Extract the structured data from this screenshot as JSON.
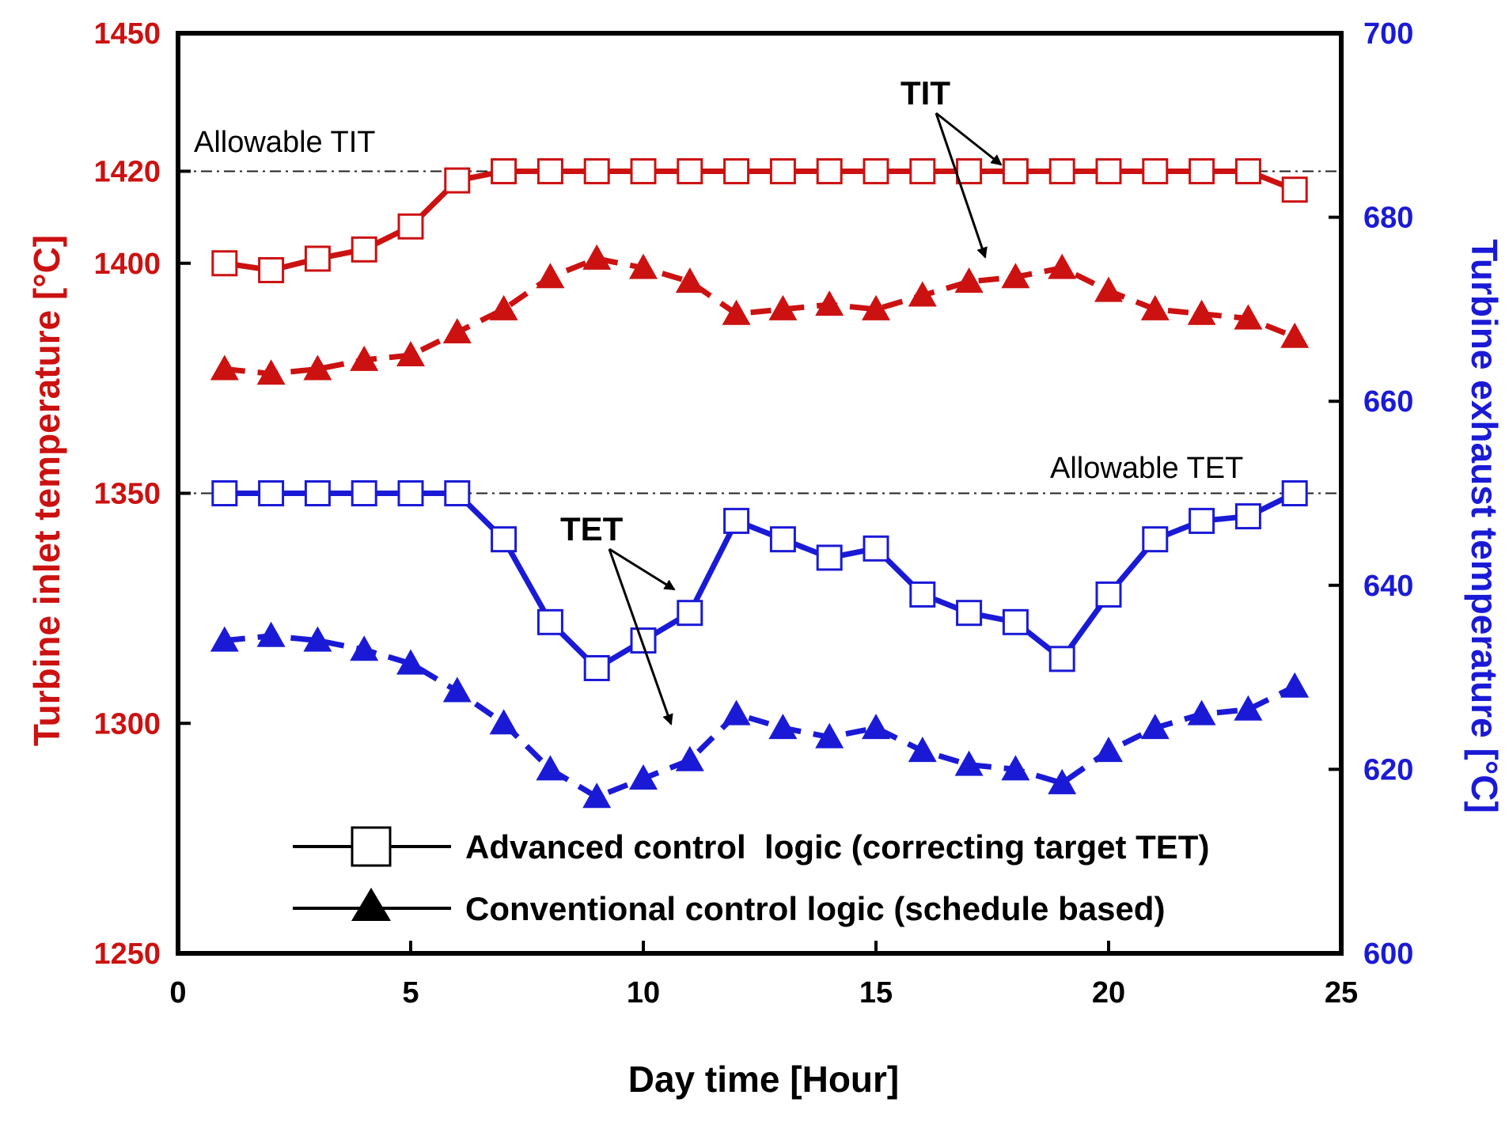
{
  "chart_data": {
    "type": "line",
    "xlabel": "Day time [Hour]",
    "ylabel_left": "Turbine inlet temperature [°C]",
    "ylabel_right": "Turbine exhaust temperature [°C]",
    "xlim": [
      0,
      25
    ],
    "ylim_left": [
      1250,
      1450
    ],
    "ylim_right": [
      600,
      700
    ],
    "x_ticks": [
      "0",
      "5",
      "10",
      "15",
      "20",
      "25"
    ],
    "y_ticks_left": [
      "1250",
      "1300",
      "1350",
      "1400",
      "1420",
      "1450"
    ],
    "y_ticks_right": [
      "600",
      "620",
      "640",
      "660",
      "680",
      "700"
    ],
    "colors": {
      "left_axis": "#cc1111",
      "right_axis": "#1a1ad6",
      "frame": "#000000"
    },
    "reference_lines": [
      {
        "label": "Allowable TIT",
        "axis": "left",
        "value": 1420
      },
      {
        "label": "Allowable TET",
        "axis": "right",
        "value": 650
      }
    ],
    "annotations": [
      {
        "text": "TIT"
      },
      {
        "text": "TET"
      }
    ],
    "legend": [
      {
        "label": "Advanced control  logic (correcting target TET)",
        "marker": "open-square"
      },
      {
        "label": "Conventional control logic (schedule based)",
        "marker": "filled-triangle"
      }
    ],
    "series": [
      {
        "name": "TIT - Advanced control logic",
        "axis": "left",
        "color": "#cc1111",
        "marker": "open-square",
        "line": "solid",
        "x": [
          1,
          2,
          3,
          4,
          5,
          6,
          7,
          8,
          9,
          10,
          11,
          12,
          13,
          14,
          15,
          16,
          17,
          18,
          19,
          20,
          21,
          22,
          23,
          24
        ],
        "y": [
          1400,
          1398.5,
          1401,
          1403,
          1408,
          1418,
          1420,
          1420,
          1420,
          1420,
          1420,
          1420,
          1420,
          1420,
          1420,
          1420,
          1420,
          1420,
          1420,
          1420,
          1420,
          1420,
          1420,
          1416
        ]
      },
      {
        "name": "TIT - Conventional control logic",
        "axis": "left",
        "color": "#cc1111",
        "marker": "filled-triangle",
        "line": "dashed",
        "x": [
          1,
          2,
          3,
          4,
          5,
          6,
          7,
          8,
          9,
          10,
          11,
          12,
          13,
          14,
          15,
          16,
          17,
          18,
          19,
          20,
          21,
          22,
          23,
          24
        ],
        "y": [
          1377,
          1376,
          1377,
          1379,
          1380,
          1385,
          1390,
          1397,
          1401,
          1399,
          1396,
          1389,
          1390,
          1391,
          1390,
          1393,
          1396,
          1397,
          1399,
          1394,
          1390,
          1389,
          1388,
          1384
        ]
      },
      {
        "name": "TET - Advanced control logic",
        "axis": "right",
        "color": "#1a1ad6",
        "marker": "open-square",
        "line": "solid",
        "x": [
          1,
          2,
          3,
          4,
          5,
          6,
          7,
          8,
          9,
          10,
          11,
          12,
          13,
          14,
          15,
          16,
          17,
          18,
          19,
          20,
          21,
          22,
          23,
          24
        ],
        "y": [
          650,
          650,
          650,
          650,
          650,
          650,
          645,
          636,
          631,
          634,
          637,
          647,
          645,
          643,
          644,
          639,
          637,
          636,
          632,
          639,
          645,
          647,
          647.5,
          650
        ]
      },
      {
        "name": "TET - Conventional control logic",
        "axis": "right",
        "color": "#1a1ad6",
        "marker": "filled-triangle",
        "line": "dashed",
        "x": [
          1,
          2,
          3,
          4,
          5,
          6,
          7,
          8,
          9,
          10,
          11,
          12,
          13,
          14,
          15,
          16,
          17,
          18,
          19,
          20,
          21,
          22,
          23,
          24
        ],
        "y": [
          634,
          634.5,
          634,
          633,
          631.5,
          628.5,
          625,
          620,
          617,
          619,
          621,
          626,
          624.5,
          623.5,
          624.5,
          622,
          620.5,
          620,
          618.5,
          622,
          624.5,
          626,
          626.5,
          629
        ]
      }
    ]
  }
}
